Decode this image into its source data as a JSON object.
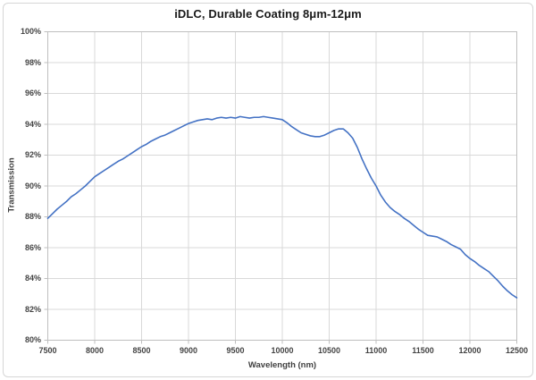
{
  "chart": {
    "title": "iDLC, Durable Coating 8μm-12μm",
    "xlabel": "Wavelength (nm)",
    "ylabel": "Transmission"
  },
  "chart_data": {
    "type": "line",
    "title": "iDLC, Durable Coating 8μm-12μm",
    "xlabel": "Wavelength (nm)",
    "ylabel": "Transmission",
    "xlim": [
      7500,
      12500
    ],
    "ylim": [
      80,
      100
    ],
    "grid": true,
    "legend": false,
    "line_color": "#4472C4",
    "gridline_color": "#d9d9d9",
    "axis_color": "#bfbfbf",
    "xticks": [
      7500,
      8000,
      8500,
      9000,
      9500,
      10000,
      10500,
      11000,
      11500,
      12000,
      12500
    ],
    "ytick_labels": [
      "100%",
      "98%",
      "96%",
      "94%",
      "92%",
      "90%",
      "88%",
      "86%",
      "84%",
      "82%",
      "80%"
    ],
    "ytick_values": [
      100,
      98,
      96,
      94,
      92,
      90,
      88,
      86,
      84,
      82,
      80
    ],
    "x": [
      7500,
      7550,
      7600,
      7650,
      7700,
      7750,
      7800,
      7850,
      7900,
      7950,
      8000,
      8050,
      8100,
      8150,
      8200,
      8250,
      8300,
      8350,
      8400,
      8450,
      8500,
      8550,
      8600,
      8650,
      8700,
      8750,
      8800,
      8850,
      8900,
      8950,
      9000,
      9050,
      9100,
      9150,
      9200,
      9250,
      9300,
      9350,
      9400,
      9450,
      9500,
      9550,
      9600,
      9650,
      9700,
      9750,
      9800,
      9850,
      9900,
      9950,
      10000,
      10050,
      10100,
      10150,
      10200,
      10250,
      10300,
      10350,
      10400,
      10450,
      10500,
      10550,
      10600,
      10650,
      10700,
      10750,
      10800,
      10850,
      10900,
      10950,
      11000,
      11050,
      11100,
      11150,
      11200,
      11250,
      11300,
      11350,
      11400,
      11450,
      11500,
      11550,
      11600,
      11650,
      11700,
      11750,
      11800,
      11850,
      11900,
      11950,
      12000,
      12050,
      12100,
      12150,
      12200,
      12250,
      12300,
      12350,
      12400,
      12450,
      12500
    ],
    "y": [
      87.9,
      88.2,
      88.5,
      88.75,
      89.0,
      89.3,
      89.5,
      89.75,
      90.0,
      90.3,
      90.6,
      90.8,
      91.0,
      91.2,
      91.4,
      91.6,
      91.75,
      91.95,
      92.15,
      92.35,
      92.55,
      92.7,
      92.9,
      93.05,
      93.2,
      93.3,
      93.45,
      93.6,
      93.75,
      93.9,
      94.05,
      94.15,
      94.25,
      94.3,
      94.35,
      94.3,
      94.4,
      94.45,
      94.4,
      94.45,
      94.4,
      94.5,
      94.45,
      94.4,
      94.45,
      94.45,
      94.5,
      94.45,
      94.4,
      94.35,
      94.3,
      94.1,
      93.85,
      93.65,
      93.45,
      93.35,
      93.25,
      93.2,
      93.2,
      93.3,
      93.45,
      93.6,
      93.7,
      93.7,
      93.45,
      93.1,
      92.5,
      91.75,
      91.1,
      90.5,
      90.0,
      89.4,
      88.95,
      88.6,
      88.35,
      88.15,
      87.9,
      87.7,
      87.45,
      87.2,
      87.0,
      86.8,
      86.75,
      86.7,
      86.55,
      86.4,
      86.2,
      86.05,
      85.9,
      85.55,
      85.3,
      85.1,
      84.85,
      84.65,
      84.45,
      84.15,
      83.85,
      83.5,
      83.2,
      82.95,
      82.75
    ]
  }
}
